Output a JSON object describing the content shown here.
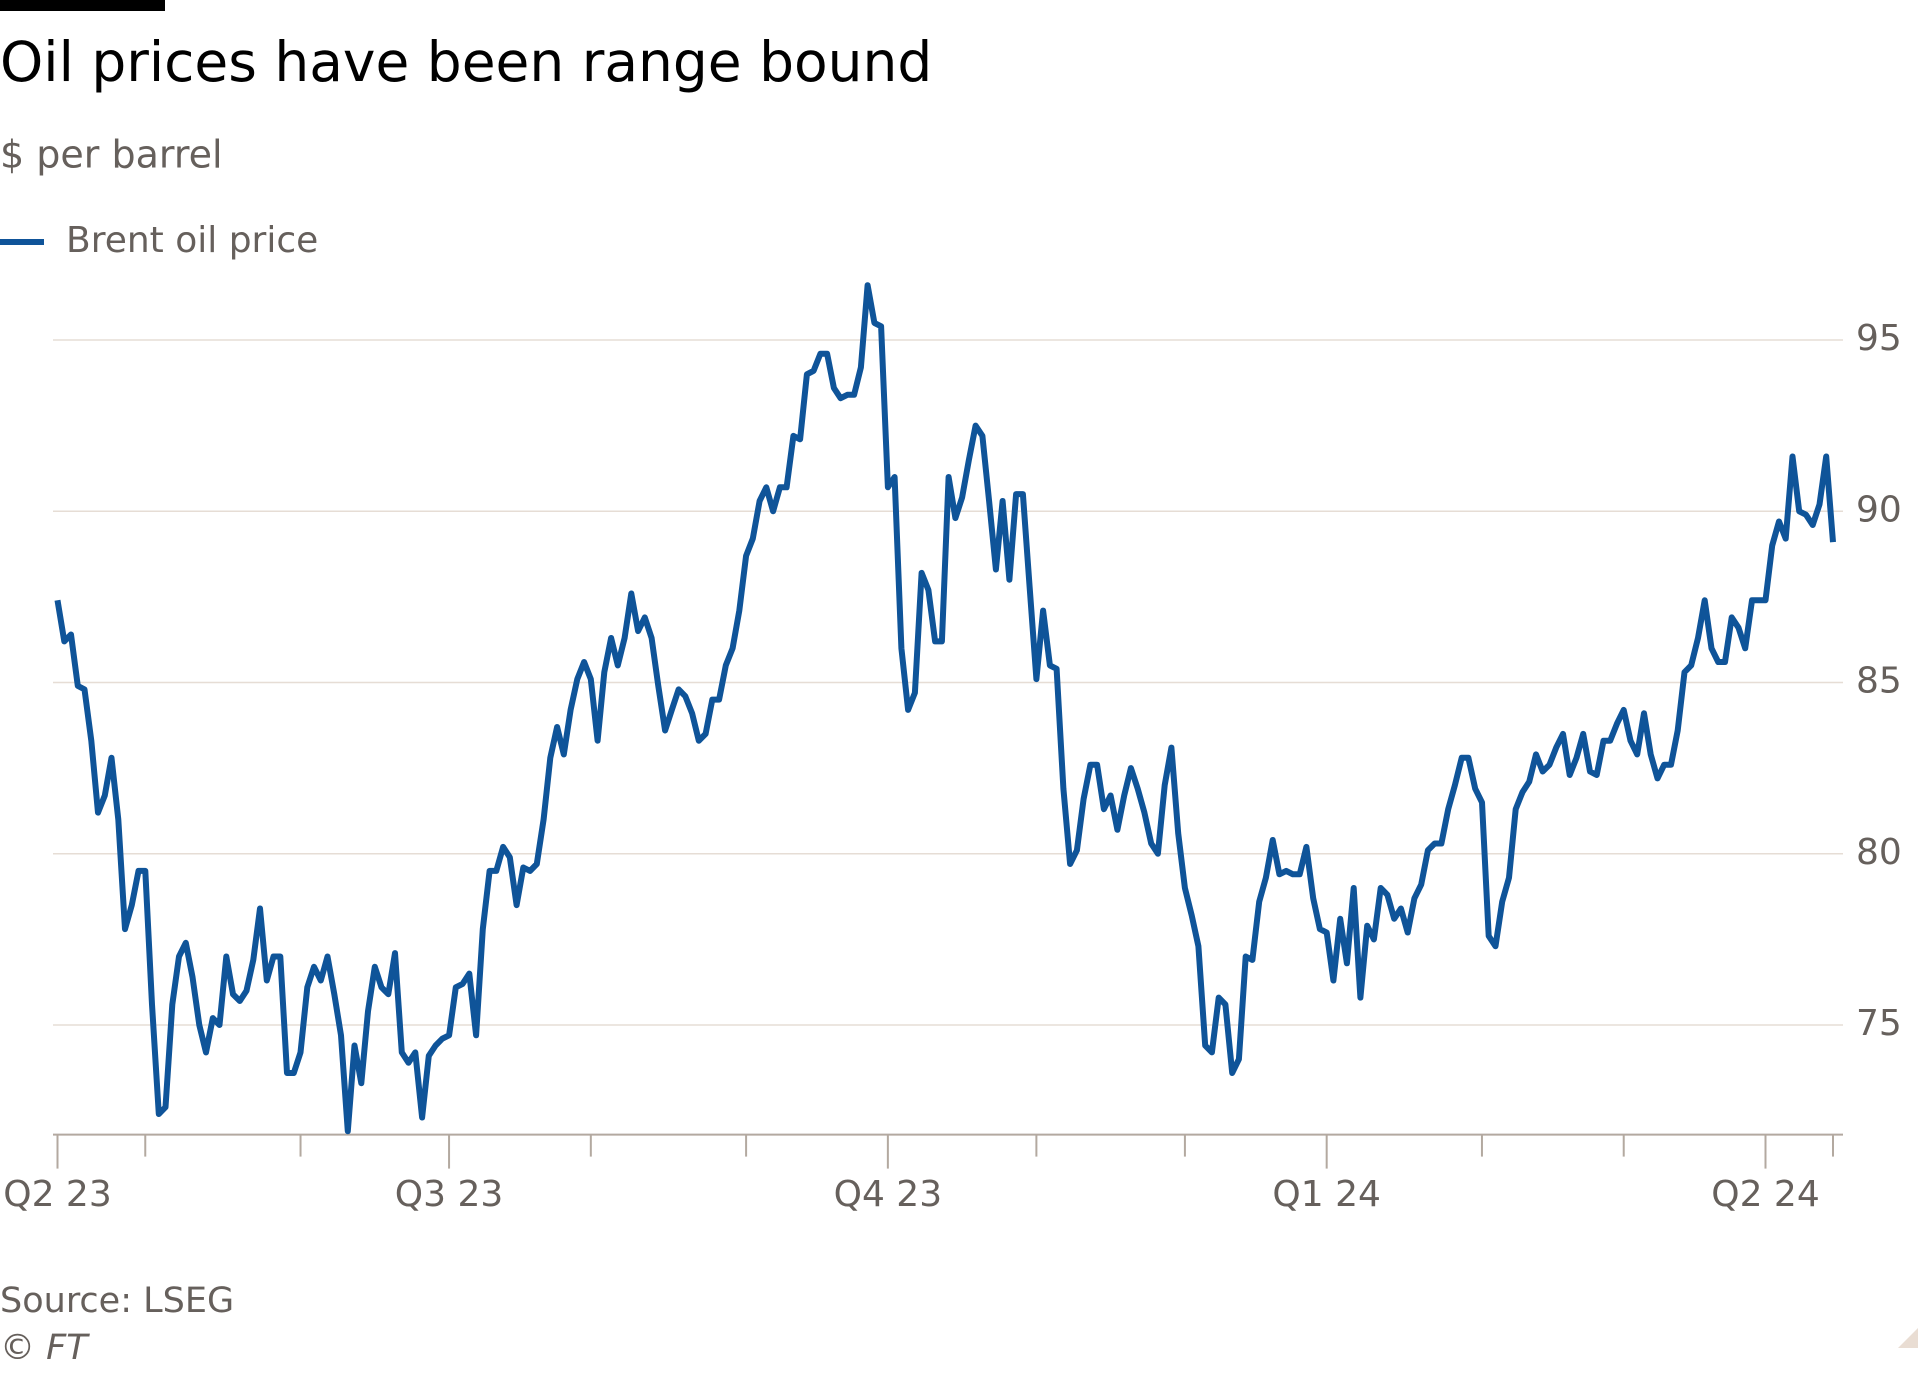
{
  "chart_data": {
    "type": "line",
    "title": "Oil prices have been range bound",
    "subtitle": "$ per barrel",
    "source": "Source: LSEG",
    "credit": "© FT",
    "series": [
      {
        "name": "Brent oil price",
        "color": "#0f5499",
        "values": [
          87.4,
          86.2,
          86.4,
          84.9,
          84.8,
          83.3,
          81.2,
          81.7,
          82.8,
          81.0,
          77.8,
          78.5,
          79.5,
          79.5,
          75.6,
          72.4,
          72.6,
          75.6,
          77.0,
          77.4,
          76.4,
          75.0,
          74.2,
          75.2,
          75.0,
          77.0,
          75.9,
          75.7,
          76.0,
          76.9,
          78.4,
          76.3,
          77.0,
          77.0,
          73.6,
          73.6,
          74.2,
          76.1,
          76.7,
          76.3,
          77.0,
          75.9,
          74.7,
          71.9,
          74.4,
          73.3,
          75.4,
          76.7,
          76.1,
          75.9,
          77.1,
          74.2,
          73.9,
          74.2,
          72.3,
          74.1,
          74.4,
          74.6,
          74.7,
          76.1,
          76.2,
          76.5,
          74.7,
          77.8,
          79.5,
          79.5,
          80.2,
          79.9,
          78.5,
          79.6,
          79.5,
          79.7,
          81.0,
          82.8,
          83.7,
          82.9,
          84.2,
          85.1,
          85.6,
          85.1,
          83.3,
          85.3,
          86.3,
          85.5,
          86.3,
          87.6,
          86.5,
          86.9,
          86.3,
          84.9,
          83.6,
          84.2,
          84.8,
          84.6,
          84.1,
          83.3,
          83.5,
          84.5,
          84.5,
          85.5,
          86.0,
          87.1,
          88.7,
          89.2,
          90.3,
          90.7,
          90.0,
          90.7,
          90.7,
          92.2,
          92.1,
          94.0,
          94.1,
          94.6,
          94.6,
          93.6,
          93.3,
          93.4,
          93.4,
          94.2,
          96.6,
          95.5,
          95.4,
          90.7,
          91.0,
          86.0,
          84.2,
          84.7,
          88.2,
          87.7,
          86.2,
          86.2,
          91.0,
          89.8,
          90.4,
          91.5,
          92.5,
          92.2,
          90.3,
          88.3,
          90.3,
          88.0,
          90.5,
          90.5,
          87.8,
          85.1,
          87.1,
          85.5,
          85.4,
          81.9,
          79.7,
          80.1,
          81.6,
          82.6,
          82.6,
          81.3,
          81.7,
          80.7,
          81.7,
          82.5,
          81.9,
          81.2,
          80.3,
          80.0,
          82.0,
          83.1,
          80.6,
          79.0,
          78.2,
          77.3,
          74.4,
          74.2,
          75.8,
          75.6,
          73.6,
          74.0,
          77.0,
          76.9,
          78.6,
          79.3,
          80.4,
          79.4,
          79.5,
          79.4,
          79.4,
          80.2,
          78.7,
          77.8,
          77.7,
          76.3,
          78.1,
          76.8,
          79.0,
          75.8,
          77.9,
          77.5,
          79.0,
          78.8,
          78.1,
          78.4,
          77.7,
          78.7,
          79.1,
          80.1,
          80.3,
          80.3,
          81.3,
          82.0,
          82.8,
          82.8,
          81.9,
          81.5,
          77.6,
          77.3,
          78.6,
          79.3,
          81.3,
          81.8,
          82.1,
          82.9,
          82.4,
          82.6,
          83.1,
          83.5,
          82.3,
          82.8,
          83.5,
          82.4,
          82.3,
          83.3,
          83.3,
          83.8,
          84.2,
          83.3,
          82.9,
          84.1,
          82.9,
          82.2,
          82.6,
          82.6,
          83.6,
          85.3,
          85.5,
          86.3,
          87.4,
          86.0,
          85.6,
          85.6,
          86.9,
          86.6,
          86.0,
          87.4,
          87.4,
          87.4,
          89.0,
          89.7,
          89.2,
          91.6,
          90.0,
          89.9,
          89.6,
          90.2,
          91.6,
          89.1
        ]
      }
    ],
    "xlim": [
      0,
      263
    ],
    "xticks": [
      {
        "value": 0,
        "label": "Q2 23"
      },
      13,
      36,
      {
        "value": 58,
        "label": "Q3 23"
      },
      79,
      102,
      {
        "value": 123,
        "label": "Q4 23"
      },
      145,
      167,
      {
        "value": 188,
        "label": "Q1 24"
      },
      211,
      232,
      {
        "value": 253,
        "label": "Q2 24"
      },
      263
    ],
    "ylim": [
      71.8,
      97
    ],
    "yticks": [
      75,
      80,
      85,
      90,
      95
    ],
    "grid": true,
    "y_axis_side": "right"
  }
}
